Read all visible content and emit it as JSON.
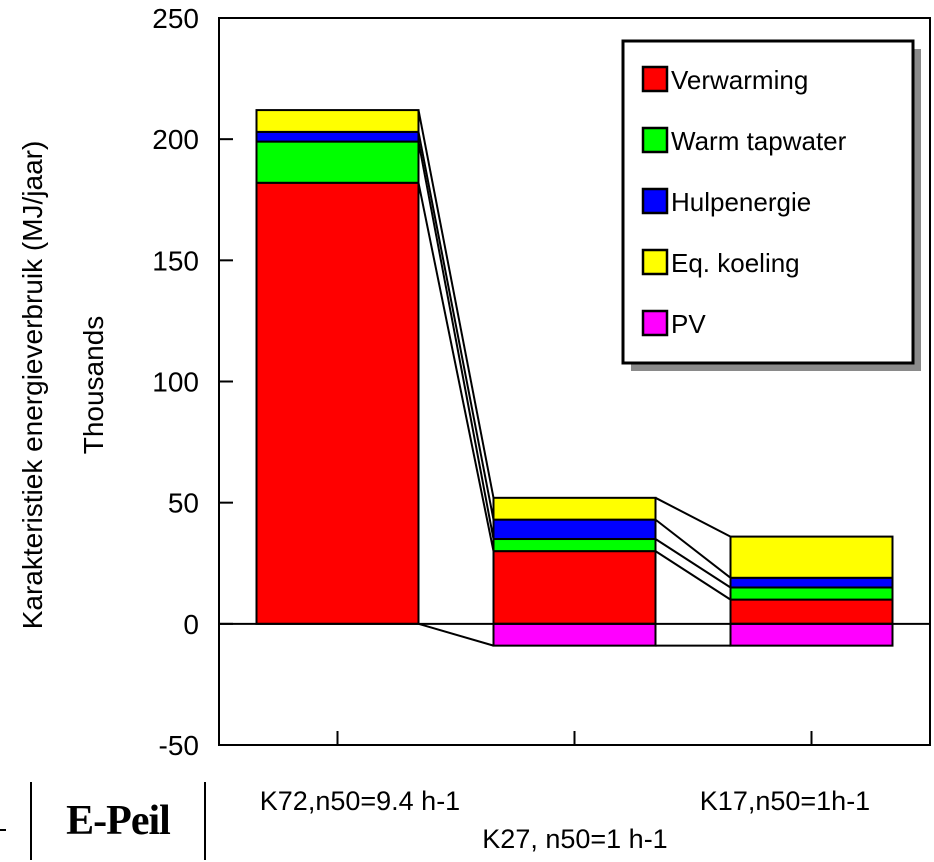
{
  "brand": {
    "logo_text": "E-Peil"
  },
  "chart_data": {
    "type": "bar",
    "stacked": true,
    "categories": [
      "K72,n50=9.4 h-1",
      "K27, n50=1 h-1",
      "K17,n50=1h-1"
    ],
    "series": [
      {
        "name": "Verwarming",
        "color": "#ff0000",
        "values": [
          182,
          30,
          10
        ]
      },
      {
        "name": "Warm tapwater",
        "color": "#00ff00",
        "values": [
          17,
          5,
          5
        ]
      },
      {
        "name": "Hulpenergie",
        "color": "#0000ff",
        "values": [
          4,
          8,
          4
        ]
      },
      {
        "name": "Eq. koeling",
        "color": "#ffff00",
        "values": [
          9,
          9,
          17
        ]
      },
      {
        "name": "PV",
        "color": "#ff00ff",
        "values": [
          0,
          -9,
          -9
        ]
      }
    ],
    "ylabel": "Karakteristiek energieverbruik (MJ/jaar)",
    "ylabel2": "Thousands",
    "ylim": [
      -50,
      250
    ],
    "yticks": [
      -50,
      0,
      50,
      100,
      150,
      200,
      250
    ],
    "grid": false,
    "legend": "top-right",
    "connector_lines": true
  }
}
